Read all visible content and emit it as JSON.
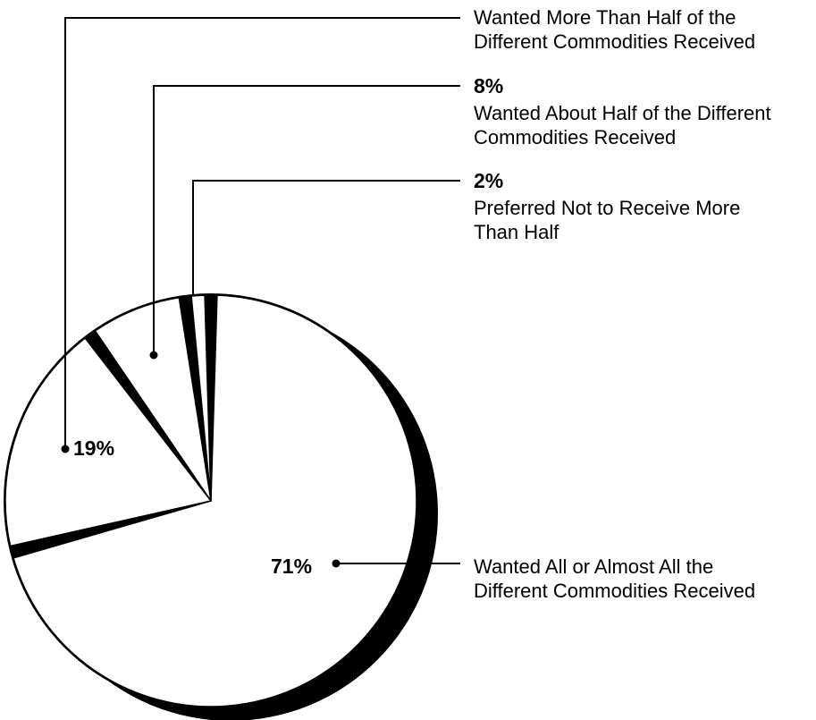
{
  "chart_data": {
    "type": "pie",
    "categories": [
      "Wanted All or Almost All the Different Commodities Received",
      "Wanted More Than Half of the Different Commodities Received",
      "Wanted About Half of the Different Commodities Received",
      "Preferred Not to Receive More Than Half"
    ],
    "values": [
      71,
      19,
      8,
      2
    ],
    "value_labels": [
      "71%",
      "19%",
      "8%",
      "2%"
    ],
    "colors": {
      "fill": "#ffffff",
      "edge": "#000000",
      "shadow": "#000000"
    },
    "legend": "callouts"
  }
}
